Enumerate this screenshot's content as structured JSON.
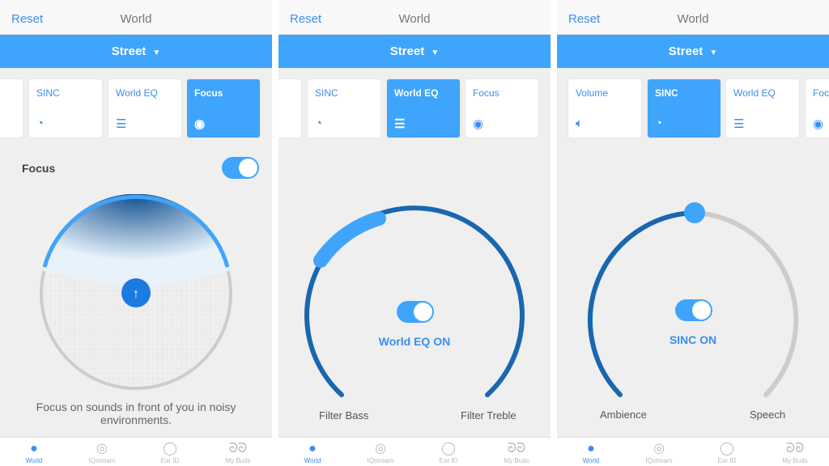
{
  "header": {
    "reset_label": "Reset",
    "title": "World",
    "preset": "Street"
  },
  "tabs": [
    {
      "label": "World",
      "icon": "globe-icon"
    },
    {
      "label": "IQstream",
      "icon": "stream-icon"
    },
    {
      "label": "Ear ID",
      "icon": "ear-icon"
    },
    {
      "label": "My Buds",
      "icon": "earbuds-icon"
    }
  ],
  "panel1": {
    "cards": [
      "SINC",
      "World EQ",
      "Focus"
    ],
    "selected": "Focus",
    "section_label": "Focus",
    "toggle_on": true,
    "description": "Focus on sounds in front of you in noisy environments."
  },
  "panel2": {
    "cards": [
      "SINC",
      "World EQ",
      "Focus"
    ],
    "selected": "World EQ",
    "status": "World EQ ON",
    "left_label": "Filter Bass",
    "right_label": "Filter Treble",
    "toggle_on": true
  },
  "panel3": {
    "cards": [
      "Volume",
      "SINC",
      "World EQ",
      "Foc"
    ],
    "selected": "SINC",
    "status": "SINC ON",
    "left_label": "Ambience",
    "right_label": "Speech",
    "toggle_on": true
  },
  "colors": {
    "accent": "#3fa4fb",
    "dark_blue": "#1a66b0"
  }
}
